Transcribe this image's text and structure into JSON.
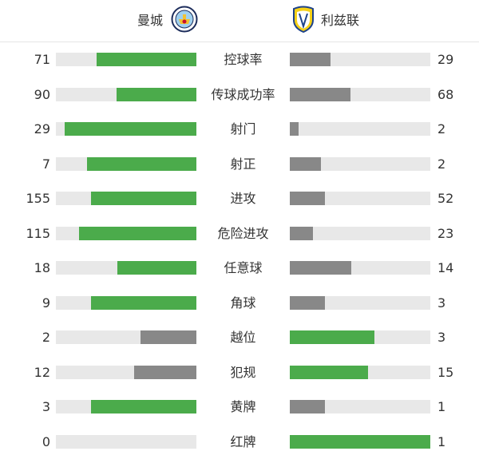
{
  "home": {
    "name": "曼城",
    "logo": "manchester-city-crest"
  },
  "away": {
    "name": "利兹联",
    "logo": "leeds-united-crest"
  },
  "colors": {
    "leader": "#4bab4b",
    "trailer": "#888888",
    "track": "#e8e8e8"
  },
  "stats": [
    {
      "label": "控球率",
      "home": 71,
      "away": 29
    },
    {
      "label": "传球成功率",
      "home": 90,
      "away": 68
    },
    {
      "label": "射门",
      "home": 29,
      "away": 2
    },
    {
      "label": "射正",
      "home": 7,
      "away": 2
    },
    {
      "label": "进攻",
      "home": 155,
      "away": 52
    },
    {
      "label": "危险进攻",
      "home": 115,
      "away": 23
    },
    {
      "label": "任意球",
      "home": 18,
      "away": 14
    },
    {
      "label": "角球",
      "home": 9,
      "away": 3
    },
    {
      "label": "越位",
      "home": 2,
      "away": 3
    },
    {
      "label": "犯规",
      "home": 12,
      "away": 15
    },
    {
      "label": "黄牌",
      "home": 3,
      "away": 1
    },
    {
      "label": "红牌",
      "home": 0,
      "away": 1
    }
  ]
}
